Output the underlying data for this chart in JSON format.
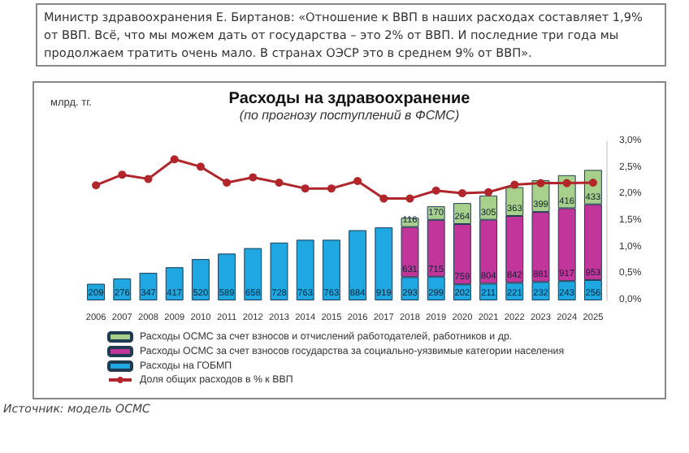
{
  "chart_data": {
    "type": "bar",
    "title": "Расходы на здравоохранение",
    "subtitle": "(по прогнозу поступлений в ФСМС)",
    "ylabel": "млрд. тг.",
    "annotations": [
      "Министр здравоохранения Е. Биртанов: «Отношение к ВВП в наших расходах составляет 1,9% от ВВП. Всё, что мы можем дать от государства – это 2% от ВВП. И последние три года мы продолжаем тратить очень мало. В странах ОЭСР это в среднем 9% от ВВП».",
      "Источник: модель ОСМС"
    ],
    "categories": [
      "2006",
      "2007",
      "2008",
      "2009",
      "2010",
      "2011",
      "2012",
      "2013",
      "2014",
      "2015",
      "2016",
      "2017",
      "2018",
      "2019",
      "2020",
      "2021",
      "2022",
      "2023",
      "2024",
      "2025"
    ],
    "stacked": true,
    "legend": "bottom",
    "grid": false,
    "tick_labels": "xy2",
    "y2lim": [
      0,
      3
    ],
    "y2ticks": [
      {
        "value": 0,
        "label": "0,0%"
      },
      {
        "value": 0.5,
        "label": "0,5%"
      },
      {
        "value": 1,
        "label": "1,0%"
      },
      {
        "value": 1.5,
        "label": "1,5%"
      },
      {
        "value": 2,
        "label": "2,0%"
      },
      {
        "value": 2.5,
        "label": "2,5%"
      },
      {
        "value": 3,
        "label": "3,0%"
      }
    ],
    "series": [
      {
        "name": "Расходы на ГОБМП",
        "color": "#1ea7e1",
        "values": [
          209,
          276,
          347,
          417,
          520,
          589,
          658,
          728,
          763,
          763,
          884,
          919,
          293,
          299,
          202,
          211,
          221,
          232,
          243,
          256
        ],
        "value_labels": [
          "209",
          "276",
          "347",
          "417",
          "520",
          "589",
          "658",
          "728",
          "763",
          "763",
          "884",
          "919",
          "293",
          "299",
          "202",
          "211",
          "221",
          "232",
          "243",
          "256"
        ]
      },
      {
        "name": "Расходы ОСМС за счет взносов государства за социально-уязвимые категории населения",
        "color": "#c2369b",
        "values": [
          null,
          null,
          null,
          null,
          null,
          null,
          null,
          null,
          null,
          null,
          null,
          null,
          631,
          715,
          759,
          804,
          842,
          881,
          917,
          953
        ],
        "value_labels": [
          null,
          null,
          null,
          null,
          null,
          null,
          null,
          null,
          null,
          null,
          null,
          null,
          "631",
          "715",
          "759",
          "804",
          "842",
          "881",
          "917",
          "953"
        ]
      },
      {
        "name": "Расходы ОСМС за счет взносов и отчислений работодателей, работников и др.",
        "color": "#a8d08d",
        "values": [
          null,
          null,
          null,
          null,
          null,
          null,
          null,
          null,
          null,
          null,
          null,
          null,
          116,
          170,
          264,
          305,
          363,
          399,
          416,
          433
        ],
        "value_labels": [
          null,
          null,
          null,
          null,
          null,
          null,
          null,
          null,
          null,
          null,
          null,
          null,
          "116",
          "170",
          "264",
          "305",
          "363",
          "399",
          "416",
          "433"
        ]
      },
      {
        "name": "Доля общих расходов в % к ВВП",
        "type": "line",
        "axis": "y2",
        "color": "#b0262b",
        "marker": "circle",
        "values": [
          2.17,
          2.37,
          2.29,
          2.66,
          2.52,
          2.22,
          2.32,
          2.22,
          2.11,
          2.11,
          2.25,
          1.92,
          1.92,
          2.07,
          2.02,
          2.04,
          2.18,
          2.21,
          2.21,
          2.22
        ]
      }
    ]
  }
}
